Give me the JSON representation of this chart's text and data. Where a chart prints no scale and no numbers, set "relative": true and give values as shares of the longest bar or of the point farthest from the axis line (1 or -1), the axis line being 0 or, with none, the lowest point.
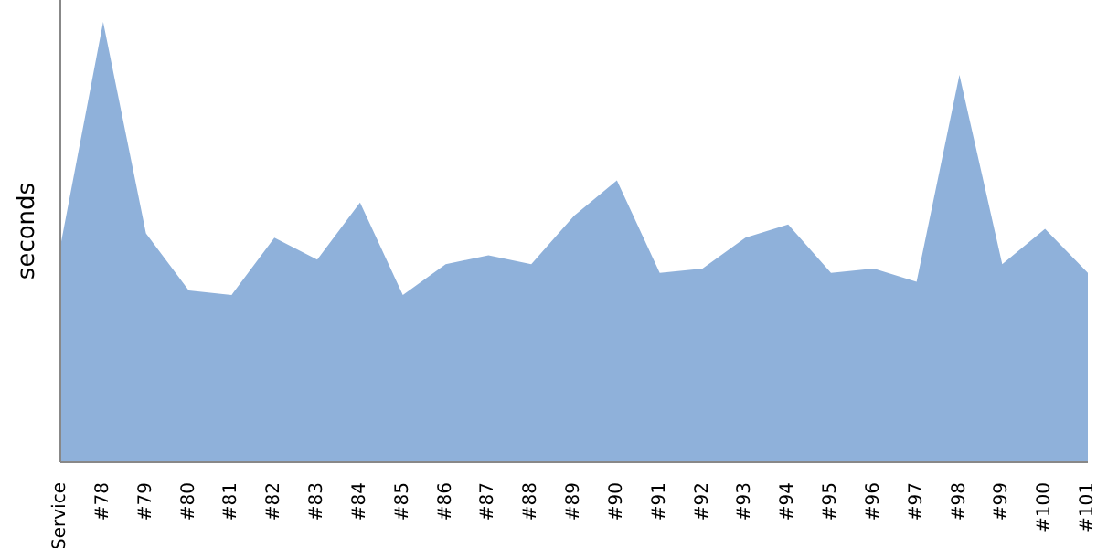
{
  "chart_data": {
    "type": "area",
    "ylabel": "seconds",
    "relative": true,
    "grid": false,
    "legend": false,
    "categories": [
      "Service",
      "#78",
      "#79",
      "#80",
      "#81",
      "#82",
      "#83",
      "#84",
      "#85",
      "#86",
      "#87",
      "#88",
      "#89",
      "#90",
      "#91",
      "#92",
      "#93",
      "#94",
      "#95",
      "#96",
      "#97",
      "#98",
      "#99",
      "#100",
      "#101"
    ],
    "series": [
      {
        "color": "#8fb1da",
        "values": [
          0.49,
          1,
          0.52,
          0.39,
          0.38,
          0.51,
          0.46,
          0.59,
          0.38,
          0.45,
          0.47,
          0.45,
          0.56,
          0.64,
          0.43,
          0.44,
          0.51,
          0.54,
          0.43,
          0.44,
          0.41,
          0.88,
          0.45,
          0.53,
          0.43
        ]
      }
    ]
  }
}
